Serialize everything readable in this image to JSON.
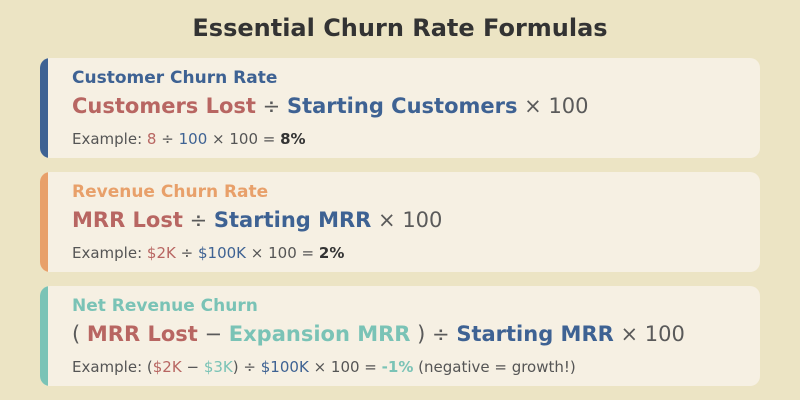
{
  "title": "Essential Churn Rate Formulas",
  "colors": {
    "blue": "#3e6293",
    "red": "#b86662",
    "orange": "#e8a06a",
    "teal": "#7ac3b6",
    "dark": "#333333",
    "gray": "#555555"
  },
  "cards": [
    {
      "title": "Customer Churn Rate",
      "accent": "#3e6293",
      "formula": {
        "term1": "Customers Lost",
        "op1": "÷",
        "term2": "Starting Customers",
        "op2": "× 100"
      },
      "example": {
        "prefix": "Example:",
        "v1": "8",
        "op1": "÷",
        "v2": "100",
        "op2": "× 100 =",
        "result": "8%"
      }
    },
    {
      "title": "Revenue Churn Rate",
      "accent": "#e8a06a",
      "formula": {
        "term1": "MRR Lost",
        "op1": "÷",
        "term2": "Starting MRR",
        "op2": "× 100"
      },
      "example": {
        "prefix": "Example:",
        "v1": "$2K",
        "op1": "÷",
        "v2": "$100K",
        "op2": "× 100 =",
        "result": "2%"
      }
    },
    {
      "title": "Net Revenue Churn",
      "accent": "#7ac3b6",
      "formula": {
        "open": "(",
        "term1": "MRR Lost",
        "minus": "−",
        "term_expansion": "Expansion MRR",
        "close": ")",
        "op1": "÷",
        "term2": "Starting MRR",
        "op2": "× 100"
      },
      "example": {
        "prefix": "Example: (",
        "v1": "$2K",
        "minus": "−",
        "v_expansion": "$3K",
        "close": ")",
        "op1": "÷",
        "v2": "$100K",
        "op2": "× 100 =",
        "result": "-1%",
        "note": "(negative = growth!)"
      }
    }
  ]
}
